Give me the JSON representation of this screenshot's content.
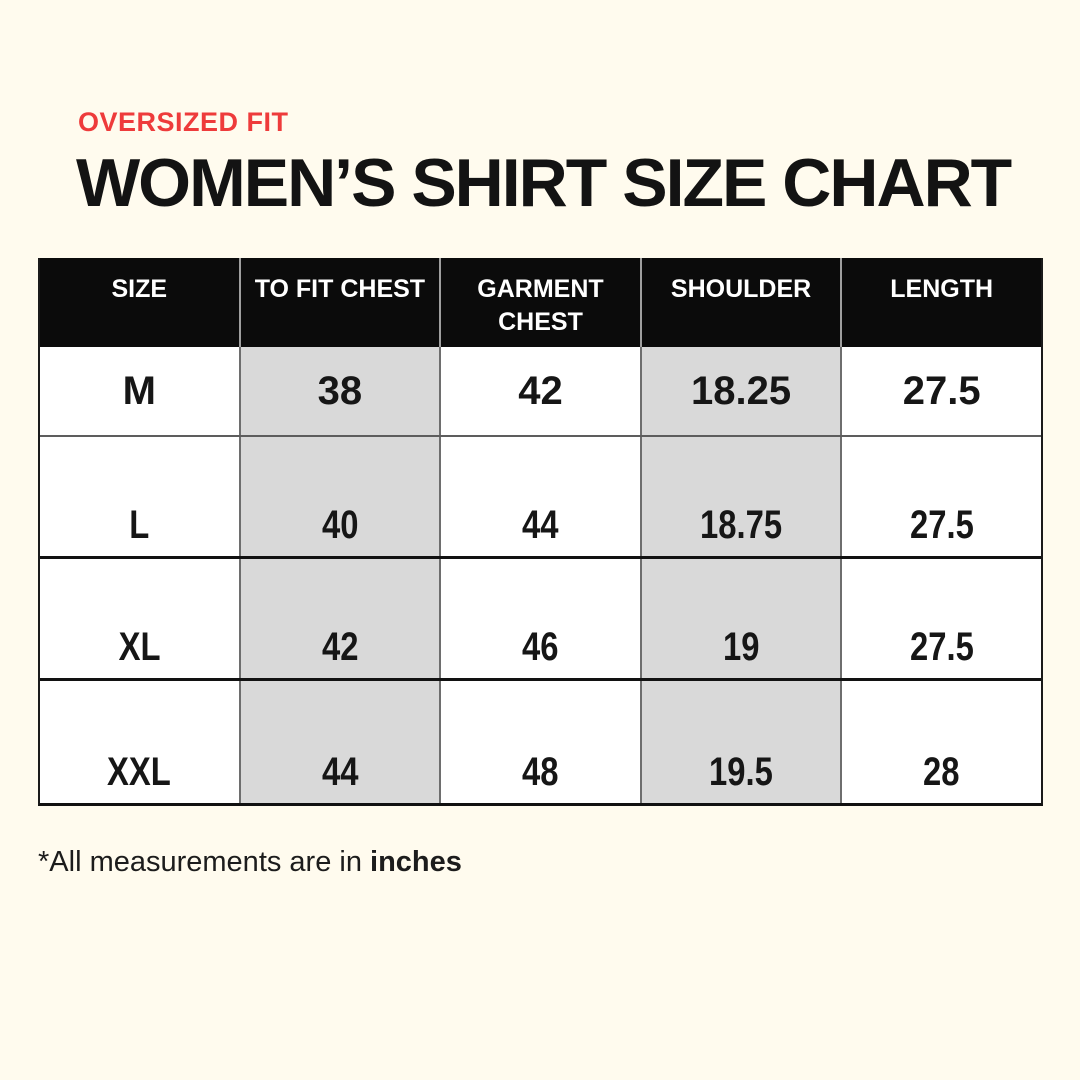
{
  "page": {
    "background_color": "#FFFBEE",
    "accent_red": "#EE3B3B",
    "header_row_bg": "#0B0B0B",
    "shaded_column_bg": "#D9D9D9"
  },
  "header": {
    "fit_label": "OVERSIZED FIT",
    "title": "WOMEN’S SHIRT SIZE CHART"
  },
  "chart_data": {
    "type": "table",
    "title": "WOMEN’S SHIRT SIZE CHART",
    "subtitle": "OVERSIZED FIT",
    "units": "inches",
    "columns": [
      "SIZE",
      "TO FIT CHEST",
      "GARMENT CHEST",
      "SHOULDER",
      "LENGTH"
    ],
    "shaded_columns": [
      "TO FIT CHEST",
      "SHOULDER"
    ],
    "rows": [
      [
        "M",
        "38",
        "42",
        "18.25",
        "27.5"
      ],
      [
        "L",
        "40",
        "44",
        "18.75",
        "27.5"
      ],
      [
        "XL",
        "42",
        "46",
        "19",
        "27.5"
      ],
      [
        "XXL",
        "44",
        "48",
        "19.5",
        "28"
      ]
    ]
  },
  "footnote": {
    "text": "*All measurements are in ",
    "emphasis": "inches"
  }
}
